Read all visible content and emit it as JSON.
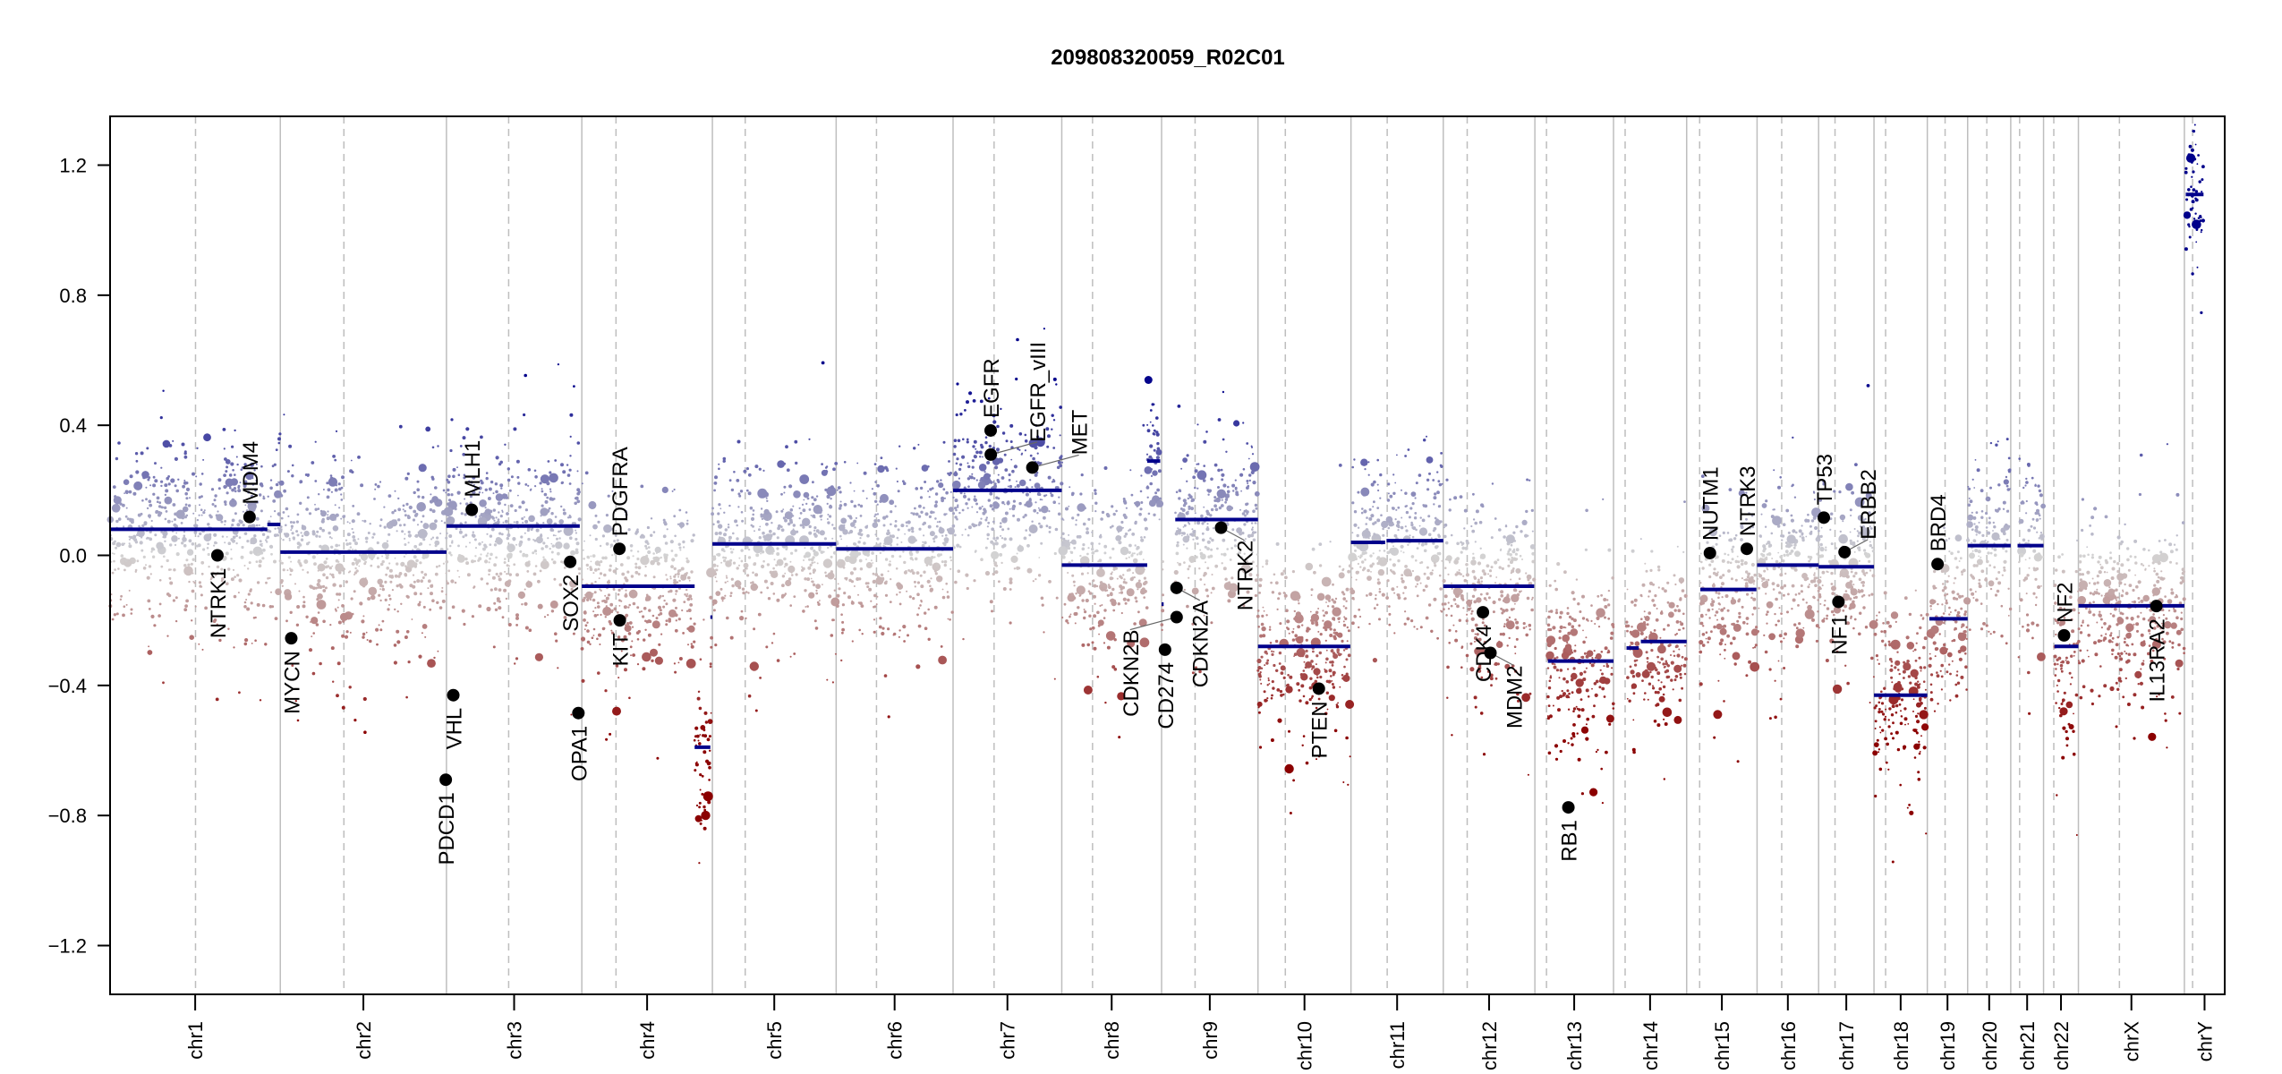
{
  "chart_data": {
    "type": "scatter",
    "title": "209808320059_R02C01",
    "xlabel": "",
    "ylabel": "",
    "ylim": [
      -1.35,
      1.35
    ],
    "yticks": [
      1.2,
      0.8,
      0.4,
      0.0,
      -0.4,
      -0.8,
      -1.2
    ],
    "ytick_labels": [
      "1.2",
      "0.8",
      "0.4",
      "0.0",
      "−0.4",
      "−0.8",
      "−1.2"
    ],
    "grid": false,
    "colors": {
      "low": "#8B0000",
      "mid": "#D3D3D3",
      "high": "#00008B",
      "segment": "#00008B",
      "gene": "#000000",
      "chrom_line": "#BEBEBE",
      "centromere_line": "#BEBEBE"
    },
    "chromosomes": [
      {
        "name": "chr1",
        "length": 249,
        "centromere": 125
      },
      {
        "name": "chr2",
        "length": 243,
        "centromere": 93
      },
      {
        "name": "chr3",
        "length": 198,
        "centromere": 91
      },
      {
        "name": "chr4",
        "length": 191,
        "centromere": 50
      },
      {
        "name": "chr5",
        "length": 181,
        "centromere": 48
      },
      {
        "name": "chr6",
        "length": 171,
        "centromere": 59
      },
      {
        "name": "chr7",
        "length": 159,
        "centromere": 60
      },
      {
        "name": "chr8",
        "length": 146,
        "centromere": 45
      },
      {
        "name": "chr9",
        "length": 141,
        "centromere": 49
      },
      {
        "name": "chr10",
        "length": 136,
        "centromere": 40
      },
      {
        "name": "chr11",
        "length": 135,
        "centromere": 53
      },
      {
        "name": "chr12",
        "length": 134,
        "centromere": 35
      },
      {
        "name": "chr13",
        "length": 115,
        "centromere": 17
      },
      {
        "name": "chr14",
        "length": 107,
        "centromere": 17
      },
      {
        "name": "chr15",
        "length": 103,
        "centromere": 19
      },
      {
        "name": "chr16",
        "length": 90,
        "centromere": 36
      },
      {
        "name": "chr17",
        "length": 81,
        "centromere": 24
      },
      {
        "name": "chr18",
        "length": 78,
        "centromere": 17
      },
      {
        "name": "chr19",
        "length": 59,
        "centromere": 26
      },
      {
        "name": "chr20",
        "length": 63,
        "centromere": 28
      },
      {
        "name": "chr21",
        "length": 48,
        "centromere": 13
      },
      {
        "name": "chr22",
        "length": 51,
        "centromere": 15
      },
      {
        "name": "chrX",
        "length": 155,
        "centromere": 60
      },
      {
        "name": "chrY",
        "length": 59,
        "centromere": 12
      }
    ],
    "segments": [
      {
        "chr": "chr1",
        "start": 0,
        "end": 230,
        "value": 0.08
      },
      {
        "chr": "chr1",
        "start": 230,
        "end": 249,
        "value": 0.095
      },
      {
        "chr": "chr2",
        "start": 0,
        "end": 243,
        "value": 0.01
      },
      {
        "chr": "chr3",
        "start": 0,
        "end": 195,
        "value": 0.09
      },
      {
        "chr": "chr4",
        "start": 0,
        "end": 165,
        "value": -0.095
      },
      {
        "chr": "chr4",
        "start": 165,
        "end": 188,
        "value": -0.59
      },
      {
        "chr": "chr4",
        "start": 188,
        "end": 191,
        "value": -0.19
      },
      {
        "chr": "chr5",
        "start": 0,
        "end": 181,
        "value": 0.035
      },
      {
        "chr": "chr6",
        "start": 0,
        "end": 171,
        "value": 0.02
      },
      {
        "chr": "chr7",
        "start": 0,
        "end": 159,
        "value": 0.2
      },
      {
        "chr": "chr8",
        "start": 0,
        "end": 125,
        "value": -0.03
      },
      {
        "chr": "chr8",
        "start": 125,
        "end": 144,
        "value": 0.29
      },
      {
        "chr": "chr9",
        "start": 0,
        "end": 3,
        "value": -0.15
      },
      {
        "chr": "chr9",
        "start": 20,
        "end": 141,
        "value": 0.11
      },
      {
        "chr": "chr10",
        "start": 0,
        "end": 135,
        "value": -0.28
      },
      {
        "chr": "chr11",
        "start": 0,
        "end": 50,
        "value": 0.04
      },
      {
        "chr": "chr11",
        "start": 52,
        "end": 135,
        "value": 0.045
      },
      {
        "chr": "chr12",
        "start": 0,
        "end": 133,
        "value": -0.095
      },
      {
        "chr": "chr13",
        "start": 19,
        "end": 115,
        "value": -0.325
      },
      {
        "chr": "chr14",
        "start": 19,
        "end": 37,
        "value": -0.285
      },
      {
        "chr": "chr14",
        "start": 40,
        "end": 107,
        "value": -0.265
      },
      {
        "chr": "chr15",
        "start": 20,
        "end": 102,
        "value": -0.105
      },
      {
        "chr": "chr16",
        "start": 0,
        "end": 90,
        "value": -0.03
      },
      {
        "chr": "chr17",
        "start": 0,
        "end": 81,
        "value": -0.035
      },
      {
        "chr": "chr18",
        "start": 0,
        "end": 78,
        "value": -0.43
      },
      {
        "chr": "chr19",
        "start": 3,
        "end": 59,
        "value": -0.195
      },
      {
        "chr": "chr20",
        "start": 0,
        "end": 63,
        "value": 0.03
      },
      {
        "chr": "chr21",
        "start": 10,
        "end": 48,
        "value": 0.03
      },
      {
        "chr": "chr22",
        "start": 16,
        "end": 51,
        "value": -0.28
      },
      {
        "chr": "chrX",
        "start": 0,
        "end": 155,
        "value": -0.155
      },
      {
        "chr": "chrY",
        "start": 2,
        "end": 28,
        "value": 1.11
      }
    ],
    "genes": [
      {
        "name": "NTRK1",
        "chr": "chr1",
        "pos": 157,
        "value": 0.0
      },
      {
        "name": "MDM4",
        "chr": "chr1",
        "pos": 204,
        "value": 0.118
      },
      {
        "name": "MYCN",
        "chr": "chr2",
        "pos": 16,
        "value": -0.255
      },
      {
        "name": "PDCD1",
        "chr": "chr2",
        "pos": 242,
        "value": -0.69
      },
      {
        "name": "VHL",
        "chr": "chr3",
        "pos": 10,
        "value": -0.43
      },
      {
        "name": "MLH1",
        "chr": "chr3",
        "pos": 37,
        "value": 0.14
      },
      {
        "name": "SOX2",
        "chr": "chr3",
        "pos": 181,
        "value": -0.02
      },
      {
        "name": "OPA1",
        "chr": "chr3",
        "pos": 193,
        "value": -0.485
      },
      {
        "name": "PDGFRA",
        "chr": "chr4",
        "pos": 55,
        "value": 0.02
      },
      {
        "name": "KIT",
        "chr": "chr4",
        "pos": 55.5,
        "value": -0.2
      },
      {
        "name": "EGFR",
        "chr": "chr7",
        "pos": 55,
        "value": 0.384
      },
      {
        "name": "EGFR_vIII",
        "chr": "chr7",
        "pos": 55.2,
        "value": 0.31
      },
      {
        "name": "MET",
        "chr": "chr7",
        "pos": 116,
        "value": 0.27
      },
      {
        "name": "CD274",
        "chr": "chr9",
        "pos": 5,
        "value": -0.29
      },
      {
        "name": "CDKN2A",
        "chr": "chr9",
        "pos": 21.9,
        "value": -0.1
      },
      {
        "name": "CDKN2B",
        "chr": "chr9",
        "pos": 22.0,
        "value": -0.19
      },
      {
        "name": "NTRK2",
        "chr": "chr9",
        "pos": 87,
        "value": 0.085
      },
      {
        "name": "PTEN",
        "chr": "chr10",
        "pos": 89,
        "value": -0.41
      },
      {
        "name": "CDK4",
        "chr": "chr12",
        "pos": 58,
        "value": -0.175
      },
      {
        "name": "MDM2",
        "chr": "chr12",
        "pos": 69,
        "value": -0.3
      },
      {
        "name": "RB1",
        "chr": "chr13",
        "pos": 49,
        "value": -0.775
      },
      {
        "name": "NUTM1",
        "chr": "chr15",
        "pos": 34,
        "value": 0.007
      },
      {
        "name": "NTRK3",
        "chr": "chr15",
        "pos": 88,
        "value": 0.02
      },
      {
        "name": "TP53",
        "chr": "chr17",
        "pos": 7.6,
        "value": 0.116
      },
      {
        "name": "NF1",
        "chr": "chr17",
        "pos": 29,
        "value": -0.143
      },
      {
        "name": "ERBB2",
        "chr": "chr17",
        "pos": 38,
        "value": 0.01
      },
      {
        "name": "BRD4",
        "chr": "chr19",
        "pos": 15,
        "value": -0.027
      },
      {
        "name": "NF2",
        "chr": "chr22",
        "pos": 30,
        "value": -0.246
      },
      {
        "name": "IL13RA2",
        "chr": "chrX",
        "pos": 114,
        "value": -0.156
      }
    ]
  }
}
